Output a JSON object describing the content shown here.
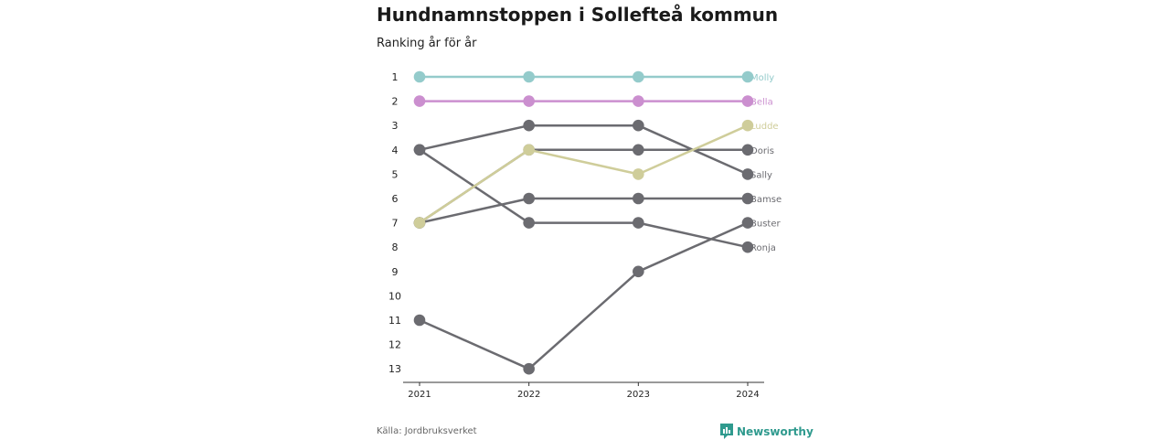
{
  "title": "Hundnamnstoppen i Sollefteå kommun",
  "subtitle": "Ranking år för år",
  "source": "Källa: Jordbruksverket",
  "brand": "Newsworthy",
  "colors": {
    "Molly": "#94cbcb",
    "Bella": "#cb8fcf",
    "Ludde": "#cfcd9a",
    "other": "#6b6b70",
    "brand": "#2f9a8e"
  },
  "chart_data": {
    "type": "line",
    "x": [
      "2021",
      "2022",
      "2023",
      "2024"
    ],
    "yticks": [
      1,
      2,
      3,
      4,
      5,
      6,
      7,
      8,
      9,
      10,
      11,
      12,
      13
    ],
    "ylim": [
      1,
      13
    ],
    "y_inverted": true,
    "series": [
      {
        "name": "Molly",
        "values": [
          1,
          1,
          1,
          1
        ]
      },
      {
        "name": "Bella",
        "values": [
          2,
          2,
          2,
          2
        ]
      },
      {
        "name": "Ludde",
        "values": [
          7,
          4,
          5,
          3
        ]
      },
      {
        "name": "Doris",
        "values": [
          7,
          4,
          4,
          4
        ]
      },
      {
        "name": "Sally",
        "values": [
          4,
          3,
          3,
          5
        ]
      },
      {
        "name": "Bamse",
        "values": [
          7,
          6,
          6,
          6
        ]
      },
      {
        "name": "Buster",
        "values": [
          11,
          13,
          9,
          7
        ]
      },
      {
        "name": "Ronja",
        "values": [
          4,
          7,
          7,
          8
        ]
      }
    ]
  }
}
